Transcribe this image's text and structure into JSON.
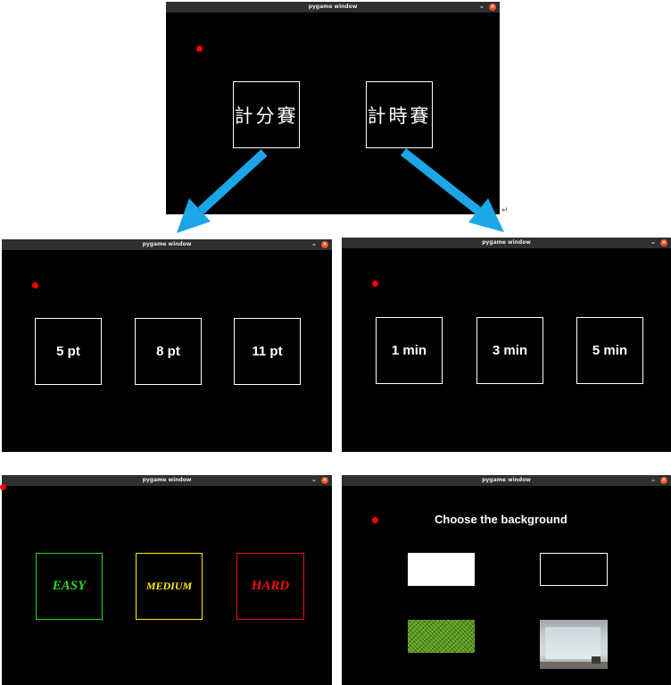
{
  "windows": {
    "title": "pygame window",
    "minimize": "–",
    "close": "×"
  },
  "modes": {
    "score": "計分賽",
    "time": "計時賽"
  },
  "points": [
    "5 pt",
    "8 pt",
    "11 pt"
  ],
  "times": [
    "1 min",
    "3 min",
    "5 min"
  ],
  "difficulty": {
    "labels": [
      "EASY",
      "MEDIUM",
      "HARD"
    ],
    "colors": [
      "#22dd22",
      "#ffee00",
      "#ee1111"
    ]
  },
  "background": {
    "title": "Choose the background"
  },
  "colors": {
    "arrow": "#1ca6e8",
    "dot": "#ff0000"
  },
  "return_mark": "↵"
}
